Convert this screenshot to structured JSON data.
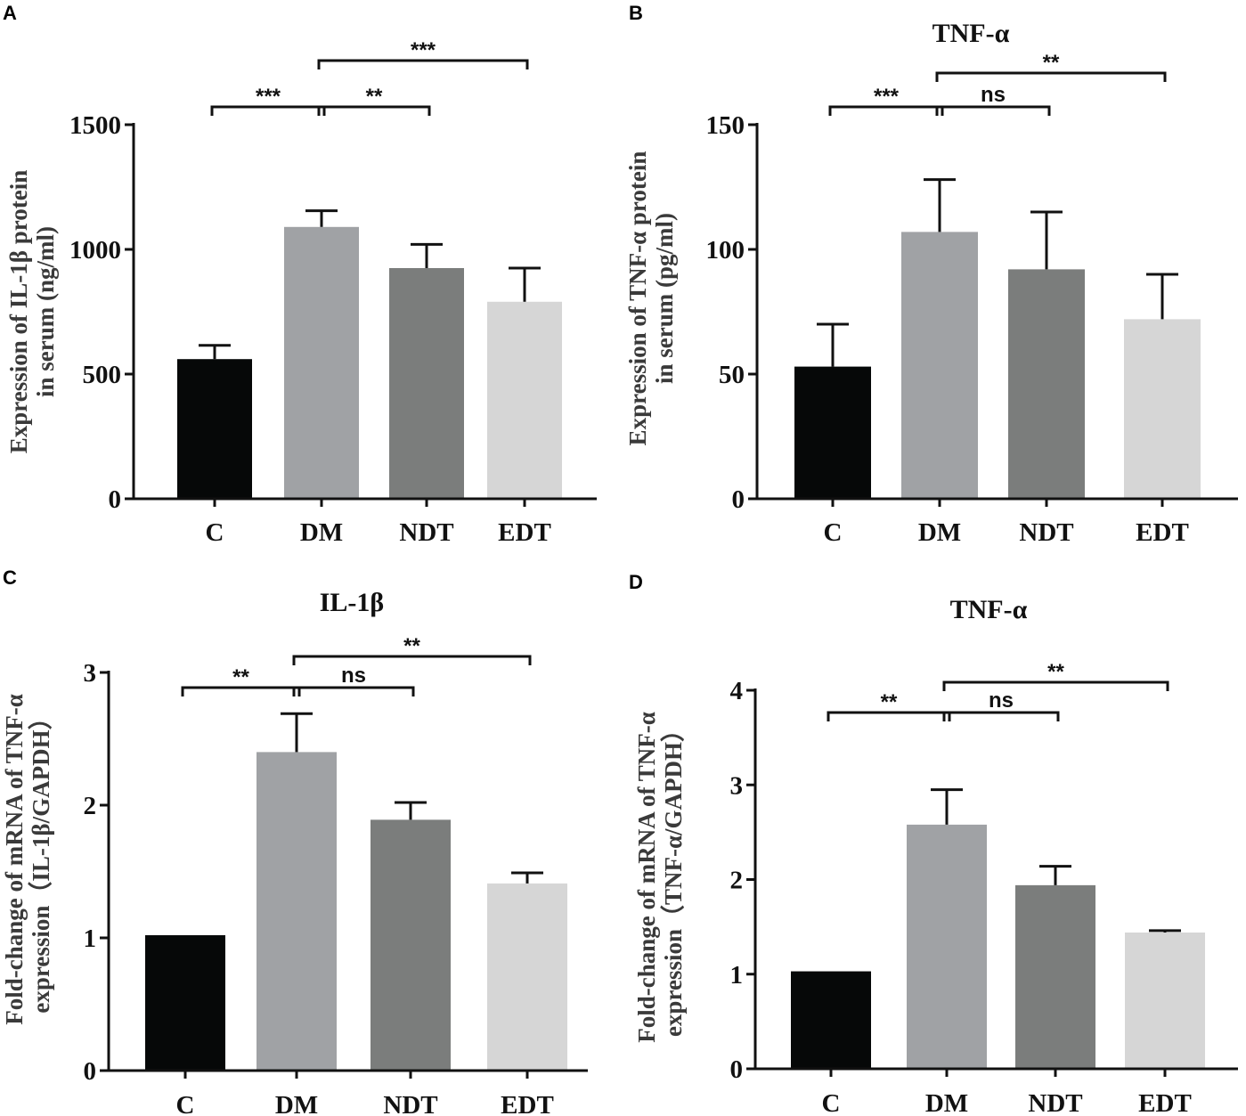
{
  "chart_data": [
    {
      "panel": "A",
      "type": "bar",
      "title": "",
      "categories": [
        "C",
        "DM",
        "NDT",
        "EDT"
      ],
      "values": [
        560,
        1090,
        925,
        790
      ],
      "errors": [
        55,
        65,
        95,
        135
      ],
      "colors": [
        "#060808",
        "#a0a2a5",
        "#7b7d7c",
        "#d6d6d6"
      ],
      "ylabel": [
        "Expression of IL-1β protein",
        "in serum (ng/ml)"
      ],
      "ylim": [
        0,
        1500
      ],
      "yticks": [
        0,
        500,
        1000,
        1500
      ],
      "ytick_labels": [
        "0",
        "500",
        "1000",
        "1500"
      ],
      "significance": [
        {
          "from": 0,
          "to": 1,
          "label": "***",
          "level": 0
        },
        {
          "from": 1,
          "to": 2,
          "label": "**",
          "level": 0
        },
        {
          "from": 1,
          "to": 3,
          "label": "***",
          "level": 1
        }
      ]
    },
    {
      "panel": "B",
      "type": "bar",
      "title": "TNF-α",
      "categories": [
        "C",
        "DM",
        "NDT",
        "EDT"
      ],
      "values": [
        53,
        107,
        92,
        72
      ],
      "errors": [
        17,
        21,
        23,
        18
      ],
      "colors": [
        "#060808",
        "#a0a2a5",
        "#7b7d7c",
        "#d6d6d6"
      ],
      "ylabel": [
        "Expression of TNF-α protein",
        "in serum (pg/ml)"
      ],
      "ylim": [
        0,
        150
      ],
      "yticks": [
        0,
        50,
        100,
        150
      ],
      "ytick_labels": [
        "0",
        "50",
        "100",
        "150"
      ],
      "significance": [
        {
          "from": 0,
          "to": 1,
          "label": "***",
          "level": 0
        },
        {
          "from": 1,
          "to": 2,
          "label": "ns",
          "level": 0
        },
        {
          "from": 1,
          "to": 3,
          "label": "**",
          "level": 1
        }
      ]
    },
    {
      "panel": "C",
      "type": "bar",
      "title": "IL-1β",
      "categories": [
        "C",
        "DM",
        "NDT",
        "EDT"
      ],
      "values": [
        1.02,
        2.4,
        1.89,
        1.41
      ],
      "errors": [
        0,
        0.29,
        0.13,
        0.08
      ],
      "colors": [
        "#060808",
        "#a0a2a5",
        "#7b7d7c",
        "#d6d6d6"
      ],
      "ylabel": [
        "Fold-change of mRNA of TNF-α",
        "expression（IL-1β/GAPDH）"
      ],
      "ylim": [
        0,
        3
      ],
      "yticks": [
        0,
        1,
        2,
        3
      ],
      "ytick_labels": [
        "0",
        "1",
        "2",
        "3"
      ],
      "significance": [
        {
          "from": 0,
          "to": 1,
          "label": "**",
          "level": 0
        },
        {
          "from": 1,
          "to": 2,
          "label": "ns",
          "level": 0
        },
        {
          "from": 1,
          "to": 3,
          "label": "**",
          "level": 1
        }
      ]
    },
    {
      "panel": "D",
      "type": "bar",
      "title": "TNF-α",
      "categories": [
        "C",
        "DM",
        "NDT",
        "EDT"
      ],
      "values": [
        1.03,
        2.58,
        1.94,
        1.44
      ],
      "errors": [
        0,
        0.37,
        0.2,
        0.02
      ],
      "colors": [
        "#060808",
        "#a0a2a5",
        "#7b7d7c",
        "#d6d6d6"
      ],
      "ylabel": [
        "Fold-change of mRNA of TNF-α",
        "expression（TNF-α/GAPDH）"
      ],
      "ylim": [
        0,
        4
      ],
      "yticks": [
        0,
        1,
        2,
        3,
        4
      ],
      "ytick_labels": [
        "0",
        "1",
        "2",
        "3",
        "4"
      ],
      "significance": [
        {
          "from": 0,
          "to": 1,
          "label": "**",
          "level": 0
        },
        {
          "from": 1,
          "to": 2,
          "label": "ns",
          "level": 0
        },
        {
          "from": 1,
          "to": 3,
          "label": "**",
          "level": 1
        }
      ]
    }
  ]
}
